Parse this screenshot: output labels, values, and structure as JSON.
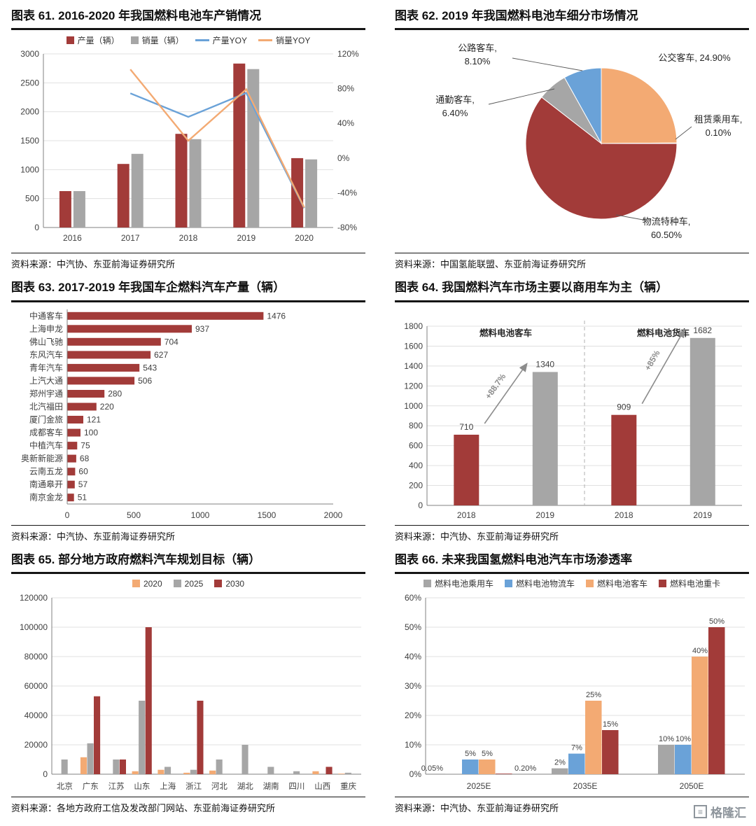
{
  "logo": {
    "text": "格隆汇"
  },
  "panels": [
    {
      "id": "figure-61",
      "title": "图表 61. 2016-2020 年我国燃料电池车产销情况",
      "source": "资料来源：中汽协、东亚前海证券研究所"
    },
    {
      "id": "figure-62",
      "title": "图表 62. 2019 年我国燃料电池车细分市场情况",
      "source": "资料来源：中国氢能联盟、东亚前海证券研究所"
    },
    {
      "id": "figure-63",
      "title": "图表 63. 2017-2019 年我国车企燃料汽车产量（辆）",
      "source": "资料来源：中汽协、东亚前海证券研究所"
    },
    {
      "id": "figure-64",
      "title": "图表 64. 我国燃料汽车市场主要以商用车为主（辆）",
      "source": "资料来源：中汽协、东亚前海证券研究所"
    },
    {
      "id": "figure-65",
      "title": "图表 65. 部分地方政府燃料汽车规划目标（辆）",
      "source": "资料来源：各地方政府工信及发改部门网站、东亚前海证券研究所"
    },
    {
      "id": "figure-66",
      "title": "图表 66. 未来我国氢燃料电池汽车市场渗透率",
      "source": "资料来源：中汽协、东亚前海证券研究所"
    }
  ],
  "chart_data": [
    {
      "type": "combo",
      "title": "2016-2020 年我国燃料电池车产销情况",
      "categories": [
        "2016",
        "2017",
        "2018",
        "2019",
        "2020"
      ],
      "bar_series": [
        {
          "name": "产量（辆）",
          "color": "#a23b39",
          "values": [
            629,
            1098,
            1619,
            2833,
            1199
          ]
        },
        {
          "name": "销量（辆）",
          "color": "#a6a6a6",
          "values": [
            629,
            1272,
            1527,
            2737,
            1177
          ]
        }
      ],
      "line_series": [
        {
          "name": "产量YOY",
          "color": "#6aa2d8",
          "values": [
            null,
            74.6,
            47.4,
            75.0,
            -57.7
          ]
        },
        {
          "name": "销量YOY",
          "color": "#f3aa73",
          "values": [
            null,
            102.2,
            20.0,
            79.2,
            -57.0
          ]
        }
      ],
      "ylim": [
        0,
        3000
      ],
      "ystep": 500,
      "y2lim": [
        -80,
        120
      ],
      "y2step": 40
    },
    {
      "type": "pie",
      "title": "2019 年我国燃料电池车细分市场情况",
      "slices": [
        {
          "name": "公交客车",
          "pct_label": "24.90%",
          "value": 24.9,
          "color": "#f3aa73"
        },
        {
          "name": "租赁乘用车",
          "pct_label": "0.10%",
          "value": 0.1,
          "color": "#e2c097"
        },
        {
          "name": "物流特种车",
          "pct_label": "60.50%",
          "value": 60.5,
          "color": "#a23b39"
        },
        {
          "name": "通勤客车",
          "pct_label": "6.40%",
          "value": 6.4,
          "color": "#a6a6a6"
        },
        {
          "name": "公路客车",
          "pct_label": "8.10%",
          "value": 8.1,
          "color": "#6aa2d8"
        }
      ]
    },
    {
      "type": "hbar",
      "title": "2017-2019 年我国车企燃料汽车产量（辆）",
      "color": "#a23b39",
      "xlim": [
        0,
        2000
      ],
      "xticks": [
        0,
        500,
        1000,
        1500,
        2000
      ],
      "items": [
        {
          "name": "中通客车",
          "value": 1476
        },
        {
          "name": "上海申龙",
          "value": 937
        },
        {
          "name": "佛山飞驰",
          "value": 704
        },
        {
          "name": "东风汽车",
          "value": 627
        },
        {
          "name": "青年汽车",
          "value": 543
        },
        {
          "name": "上汽大通",
          "value": 506
        },
        {
          "name": "郑州宇通",
          "value": 280
        },
        {
          "name": "北汽福田",
          "value": 220
        },
        {
          "name": "厦门金旅",
          "value": 121
        },
        {
          "name": "成都客车",
          "value": 100
        },
        {
          "name": "中植汽车",
          "value": 75
        },
        {
          "name": "奥新新能源",
          "value": 68
        },
        {
          "name": "云南五龙",
          "value": 60
        },
        {
          "name": "南通皋开",
          "value": 57
        },
        {
          "name": "南京金龙",
          "value": 51
        }
      ]
    },
    {
      "type": "dual_bar",
      "title": "我国燃料汽车市场主要以商用车为主（辆）",
      "ylim": [
        0,
        1800
      ],
      "ystep": 200,
      "bar_colors": [
        "#a23b39",
        "#a6a6a6"
      ],
      "groups": [
        {
          "label": "燃料电池客车",
          "growth_label": "+88.7%",
          "years": [
            "2018",
            "2019"
          ],
          "values": [
            710,
            1340
          ]
        },
        {
          "label": "燃料电池货车",
          "growth_label": "+85%",
          "years": [
            "2018",
            "2019"
          ],
          "values": [
            909,
            1682
          ]
        }
      ]
    },
    {
      "type": "grouped",
      "title": "部分地方政府燃料汽车规划目标（辆）",
      "categories": [
        "北京",
        "广东",
        "江苏",
        "山东",
        "上海",
        "浙江",
        "河北",
        "湖北",
        "湖南",
        "四川",
        "山西",
        "重庆"
      ],
      "series": [
        {
          "name": "2020",
          "color": "#f3aa73",
          "values": [
            0,
            11500,
            0,
            2000,
            3000,
            1000,
            2500,
            0,
            0,
            0,
            2000,
            400
          ]
        },
        {
          "name": "2025",
          "color": "#a6a6a6",
          "values": [
            10000,
            21000,
            10000,
            50000,
            5000,
            3000,
            10000,
            20000,
            5000,
            2000,
            0,
            1000
          ]
        },
        {
          "name": "2030",
          "color": "#a23b39",
          "values": [
            0,
            53000,
            10000,
            100000,
            0,
            50000,
            0,
            0,
            0,
            0,
            5000,
            0
          ]
        }
      ],
      "ylim": [
        0,
        120000
      ],
      "ystep": 20000,
      "yfmt": "plain",
      "value_labels": false
    },
    {
      "type": "grouped",
      "title": "未来我国氢燃料电池汽车市场渗透率",
      "categories": [
        "2025E",
        "2035E",
        "2050E"
      ],
      "series": [
        {
          "name": "燃料电池乘用车",
          "color": "#a6a6a6",
          "values": [
            0.05,
            2,
            10
          ],
          "labels": [
            "0.05%",
            "2%",
            "10%"
          ]
        },
        {
          "name": "燃料电池物流车",
          "color": "#6aa2d8",
          "values": [
            5,
            7,
            10
          ],
          "labels": [
            "5%",
            "7%",
            "10%"
          ]
        },
        {
          "name": "燃料电池客车",
          "color": "#f3aa73",
          "values": [
            5,
            25,
            40
          ],
          "labels": [
            "5%",
            "25%",
            "40%"
          ]
        },
        {
          "name": "燃料电池重卡",
          "color": "#a23b39",
          "values": [
            0.2,
            15,
            50
          ],
          "labels": [
            "0.20%",
            "15%",
            "50%"
          ]
        }
      ],
      "ylim": [
        0,
        60
      ],
      "ystep": 10,
      "yfmt": "pct",
      "value_labels": true
    }
  ]
}
